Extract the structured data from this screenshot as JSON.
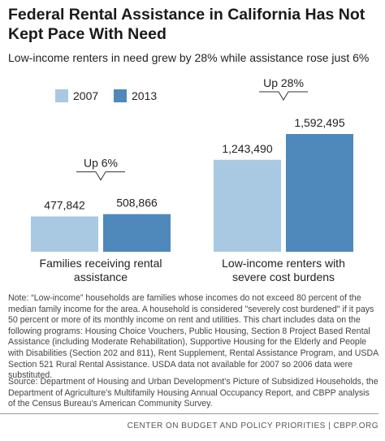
{
  "chart_data": {
    "type": "bar",
    "title": "Federal Rental Assistance in California Has Not Kept Pace With Need",
    "subtitle": "Low-income renters in need grew by 28% while assistance rose just 6%",
    "categories": [
      "Families receiving rental assistance",
      "Low-income renters with severe cost burdens"
    ],
    "series": [
      {
        "name": "2007",
        "color": "#a9c9e2",
        "values": [
          477842,
          1243490
        ],
        "value_labels": [
          "477,842",
          "1,243,490"
        ]
      },
      {
        "name": "2013",
        "color": "#4f88bb",
        "values": [
          508866,
          1592495
        ],
        "value_labels": [
          "508,866",
          "1,592,495"
        ]
      }
    ],
    "annotations": [
      "Up 6%",
      "Up 28%"
    ],
    "note": "Note: “Low-income” households are families whose incomes do not exceed 80 percent of the median family income for the area. A household is considered \"severely cost burdened\" if it pays 50 percent or more of its monthly income on rent and utilities. This chart includes data on the following programs: Housing Choice Vouchers, Public Housing, Section 8 Project Based Rental Assistance (including Moderate Rehabilitation), Supportive Housing for the Elderly and People with Disabilities (Section 202 and 811), Rent Supplement, Rental Assistance Program, and USDA Section 521 Rural Rental Assistance. USDA data not available for 2007 so 2006 data were substituted.",
    "source": "Source: Department of Housing and Urban Development’s Picture of Subsidized Households, the Department of Agriculture’s Multifamily Housing Annual Occupancy Report, and CBPP analysis of the Census Bureau’s American Community Survey.",
    "footer": "CENTER ON BUDGET AND POLICY PRIORITIES | CBPP.ORG"
  }
}
